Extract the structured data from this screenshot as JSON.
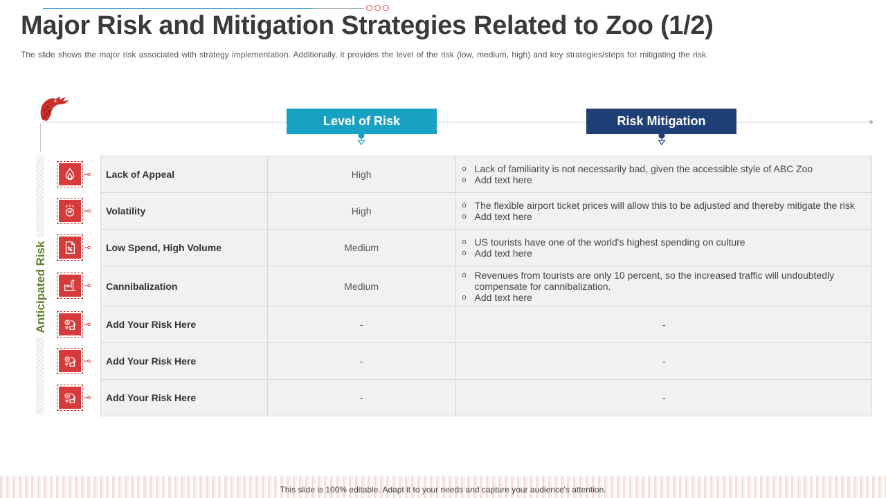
{
  "slide": {
    "title": "Major Risk and Mitigation Strategies Related to Zoo (1/2)",
    "subtitle": "The slide shows the major risk associated with strategy implementation.  Additionally, it provides  the level  of the risk (low,  medium,  high)  and  key strategies/steps for  mitigating the risk.",
    "footer": "This slide is 100% editable. Adapt it to your needs and capture your audience's attention."
  },
  "headers": {
    "level": "Level of Risk",
    "mitigation": "Risk Mitigation",
    "side": "Anticipated Risk"
  },
  "colors": {
    "level_header": "#17a2c4",
    "mitigation_header": "#1f3f77",
    "icon_red": "#d63a3a",
    "side_label": "#5e7f2f"
  },
  "rows": [
    {
      "risk": "Lack of Appeal",
      "level": "High",
      "icon": "flame-icon",
      "mitigation": [
        "Lack of familiarity is not necessarily bad, given the accessible style of ABC Zoo",
        "Add text here"
      ],
      "plain": ""
    },
    {
      "risk": "Volatility",
      "level": "High",
      "icon": "volatility-icon",
      "mitigation": [
        "The flexible airport ticket prices will allow this to be adjusted and thereby mitigate the risk",
        "Add text here"
      ],
      "plain": ""
    },
    {
      "risk": "Low Spend, High Volume",
      "level": "Medium",
      "icon": "document-percent-icon",
      "mitigation": [
        "US tourists have one of the world's highest spending on culture",
        "Add text here"
      ],
      "plain": ""
    },
    {
      "risk": "Cannibalization",
      "level": "Medium",
      "icon": "factory-icon",
      "mitigation": [
        "Revenues from tourists are only 10 percent, so the increased traffic will undoubtedly compensate for cannibalization.",
        "Add text here"
      ],
      "plain": ""
    },
    {
      "risk": "Add Your Risk Here",
      "level": "-",
      "icon": "risk-cycle-icon",
      "mitigation": [],
      "plain": "-"
    },
    {
      "risk": "Add Your Risk Here",
      "level": "-",
      "icon": "risk-cycle-icon",
      "mitigation": [],
      "plain": "-"
    },
    {
      "risk": "Add Your Risk Here",
      "level": "-",
      "icon": "risk-cycle-icon",
      "mitigation": [],
      "plain": "-"
    }
  ]
}
